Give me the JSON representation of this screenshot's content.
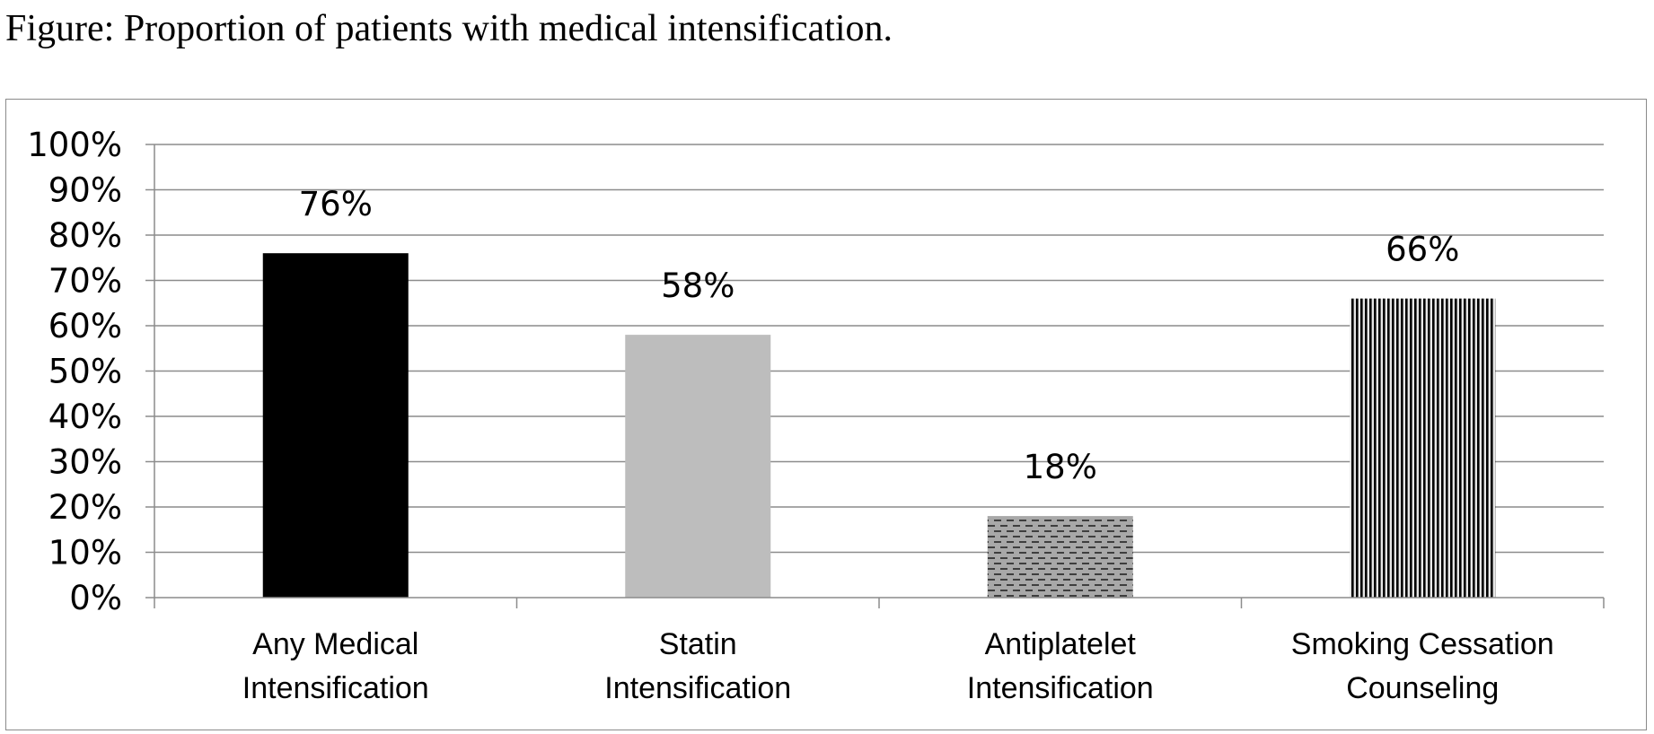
{
  "caption": "Figure: Proportion of patients with medical intensification.",
  "chart_data": {
    "type": "bar",
    "categories": [
      [
        "Any Medical",
        "Intensification"
      ],
      [
        "Statin",
        "Intensification"
      ],
      [
        "Antiplatelet",
        "Intensification"
      ],
      [
        "Smoking Cessation",
        "Counseling"
      ]
    ],
    "values": [
      76,
      58,
      18,
      66
    ],
    "data_labels": [
      "76%",
      "58%",
      "18%",
      "66%"
    ],
    "ylim": [
      0,
      100
    ],
    "y_ticks": [
      "0%",
      "10%",
      "20%",
      "30%",
      "40%",
      "50%",
      "60%",
      "70%",
      "80%",
      "90%",
      "100%"
    ],
    "grid": true,
    "bar_styles": [
      "solid-black",
      "solid-gray",
      "dashed-gray",
      "vertical-stripes"
    ],
    "colors": {
      "black": "#000000",
      "gray": "#bdbdbd",
      "grid": "#8c8c8c"
    }
  }
}
